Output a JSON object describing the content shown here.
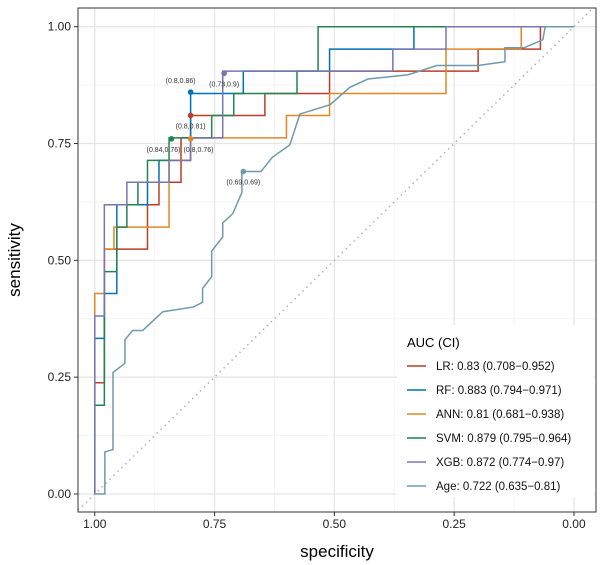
{
  "chart_data": {
    "type": "line",
    "title": "",
    "xlabel": "specificity",
    "ylabel": "sensitivity",
    "xlim": [
      1.035,
      -0.046
    ],
    "ylim": [
      -0.0385,
      1.04
    ],
    "x_reversed": true,
    "xticks": [
      1.0,
      0.75,
      0.5,
      0.25,
      0.0
    ],
    "xtick_labels": [
      "1.00",
      "0.75",
      "0.50",
      "0.25",
      "0.00"
    ],
    "yticks": [
      0.0,
      0.25,
      0.5,
      0.75,
      1.0
    ],
    "ytick_labels": [
      "0.00",
      "0.25",
      "0.50",
      "0.75",
      "1.00"
    ],
    "grid": true,
    "reference_line": "diagonal-dotted",
    "legend": {
      "title": "AUC (CI)",
      "position": "bottom-right"
    },
    "series": [
      {
        "name": "LR",
        "legend": "LR: 0.83 (0.708−0.952)",
        "color": "#BC3C29",
        "points": [
          [
            1,
            0
          ],
          [
            1,
            0.238
          ],
          [
            0.98,
            0.238
          ],
          [
            0.98,
            0.524
          ],
          [
            0.89,
            0.524
          ],
          [
            0.89,
            0.619
          ],
          [
            0.866,
            0.619
          ],
          [
            0.866,
            0.667
          ],
          [
            0.82,
            0.667
          ],
          [
            0.82,
            0.762
          ],
          [
            0.8,
            0.762
          ],
          [
            0.8,
            0.81
          ],
          [
            0.645,
            0.81
          ],
          [
            0.645,
            0.857
          ],
          [
            0.51,
            0.857
          ],
          [
            0.51,
            0.905
          ],
          [
            0.2,
            0.905
          ],
          [
            0.2,
            0.952
          ],
          [
            0.07,
            0.952
          ],
          [
            0.07,
            1
          ],
          [
            0,
            1
          ]
        ],
        "marker": [
          0.8,
          0.81
        ],
        "marker_label": "(0.8,0.81)",
        "label_pos": "below"
      },
      {
        "name": "RF",
        "legend": "RF: 0.883 (0.794−0.971)",
        "color": "#0072B5",
        "points": [
          [
            1,
            0
          ],
          [
            1,
            0.333
          ],
          [
            0.98,
            0.333
          ],
          [
            0.98,
            0.429
          ],
          [
            0.954,
            0.429
          ],
          [
            0.954,
            0.619
          ],
          [
            0.89,
            0.619
          ],
          [
            0.89,
            0.667
          ],
          [
            0.866,
            0.667
          ],
          [
            0.866,
            0.714
          ],
          [
            0.8,
            0.714
          ],
          [
            0.8,
            0.857
          ],
          [
            0.69,
            0.857
          ],
          [
            0.69,
            0.905
          ],
          [
            0.51,
            0.905
          ],
          [
            0.51,
            0.952
          ],
          [
            0.334,
            0.952
          ],
          [
            0.334,
            1
          ],
          [
            0,
            1
          ]
        ],
        "marker": [
          0.8,
          0.86
        ],
        "marker_label": "(0.8,0.86)",
        "label_pos": "above"
      },
      {
        "name": "ANN",
        "legend": "ANN: 0.81 (0.681−0.938)",
        "color": "#E18727",
        "points": [
          [
            1,
            0
          ],
          [
            1,
            0.429
          ],
          [
            0.98,
            0.429
          ],
          [
            0.98,
            0.524
          ],
          [
            0.96,
            0.524
          ],
          [
            0.96,
            0.571
          ],
          [
            0.845,
            0.571
          ],
          [
            0.845,
            0.714
          ],
          [
            0.8,
            0.714
          ],
          [
            0.8,
            0.762
          ],
          [
            0.6,
            0.762
          ],
          [
            0.6,
            0.81
          ],
          [
            0.51,
            0.81
          ],
          [
            0.51,
            0.857
          ],
          [
            0.267,
            0.857
          ],
          [
            0.267,
            0.952
          ],
          [
            0.11,
            0.952
          ],
          [
            0.11,
            1
          ],
          [
            0,
            1
          ]
        ],
        "marker": [
          0.8,
          0.76
        ],
        "marker_label": "(0.8,0.76)",
        "label_pos": "below"
      },
      {
        "name": "SVM",
        "legend": "SVM: 0.879 (0.795−0.964)",
        "color": "#20854E",
        "points": [
          [
            1,
            0
          ],
          [
            1,
            0.19
          ],
          [
            0.98,
            0.19
          ],
          [
            0.98,
            0.476
          ],
          [
            0.954,
            0.476
          ],
          [
            0.954,
            0.571
          ],
          [
            0.933,
            0.571
          ],
          [
            0.933,
            0.619
          ],
          [
            0.91,
            0.619
          ],
          [
            0.91,
            0.667
          ],
          [
            0.89,
            0.667
          ],
          [
            0.89,
            0.714
          ],
          [
            0.845,
            0.714
          ],
          [
            0.845,
            0.762
          ],
          [
            0.756,
            0.762
          ],
          [
            0.756,
            0.81
          ],
          [
            0.71,
            0.81
          ],
          [
            0.71,
            0.857
          ],
          [
            0.578,
            0.857
          ],
          [
            0.578,
            0.905
          ],
          [
            0.534,
            0.905
          ],
          [
            0.534,
            1
          ],
          [
            0,
            1
          ]
        ],
        "marker": [
          0.84,
          0.76
        ],
        "marker_label": "(0.84,0.76)",
        "label_pos": "below"
      },
      {
        "name": "XGB",
        "legend": "XGB: 0.872 (0.774−0.97)",
        "color": "#7876B1",
        "points": [
          [
            1,
            0
          ],
          [
            1,
            0.381
          ],
          [
            0.98,
            0.381
          ],
          [
            0.98,
            0.619
          ],
          [
            0.933,
            0.619
          ],
          [
            0.933,
            0.667
          ],
          [
            0.845,
            0.667
          ],
          [
            0.845,
            0.714
          ],
          [
            0.8,
            0.714
          ],
          [
            0.8,
            0.762
          ],
          [
            0.733,
            0.762
          ],
          [
            0.733,
            0.905
          ],
          [
            0.378,
            0.905
          ],
          [
            0.378,
            0.952
          ],
          [
            0.267,
            0.952
          ],
          [
            0.267,
            1
          ],
          [
            0,
            1
          ]
        ],
        "marker": [
          0.73,
          0.9
        ],
        "marker_label": "(0.73,0.9)",
        "label_pos": "below"
      },
      {
        "name": "Age",
        "legend": "Age: 0.722 (0.635−0.81)",
        "color": "#6F99AD",
        "points": [
          [
            1,
            0
          ],
          [
            0.979,
            0
          ],
          [
            0.979,
            0.09
          ],
          [
            0.962,
            0.095
          ],
          [
            0.962,
            0.26
          ],
          [
            0.937,
            0.28
          ],
          [
            0.937,
            0.33
          ],
          [
            0.921,
            0.35
          ],
          [
            0.9,
            0.35
          ],
          [
            0.858,
            0.39
          ],
          [
            0.795,
            0.4
          ],
          [
            0.775,
            0.41
          ],
          [
            0.775,
            0.44
          ],
          [
            0.756,
            0.465
          ],
          [
            0.756,
            0.52
          ],
          [
            0.733,
            0.55
          ],
          [
            0.733,
            0.58
          ],
          [
            0.712,
            0.6
          ],
          [
            0.693,
            0.645
          ],
          [
            0.693,
            0.69
          ],
          [
            0.653,
            0.69
          ],
          [
            0.63,
            0.72
          ],
          [
            0.593,
            0.747
          ],
          [
            0.572,
            0.813
          ],
          [
            0.509,
            0.833
          ],
          [
            0.468,
            0.87
          ],
          [
            0.43,
            0.888
          ],
          [
            0.347,
            0.897
          ],
          [
            0.286,
            0.917
          ],
          [
            0.2,
            0.917
          ],
          [
            0.144,
            0.925
          ],
          [
            0.144,
            0.955
          ],
          [
            0.104,
            0.955
          ],
          [
            0.065,
            0.972
          ],
          [
            0.06,
            1
          ],
          [
            0,
            1
          ]
        ],
        "marker": [
          0.69,
          0.69
        ],
        "marker_label": "(0.69,0.69)",
        "label_pos": "below"
      }
    ]
  }
}
